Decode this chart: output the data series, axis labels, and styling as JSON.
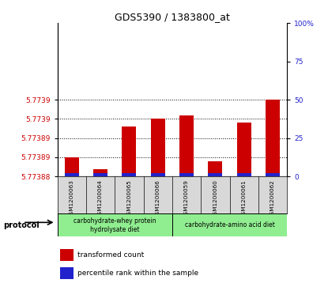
{
  "title": "GDS5390 / 1383800_at",
  "samples": [
    "GSM1200063",
    "GSM1200064",
    "GSM1200065",
    "GSM1200066",
    "GSM1200059",
    "GSM1200060",
    "GSM1200061",
    "GSM1200062"
  ],
  "red_values": [
    5.773885,
    5.773882,
    5.773893,
    5.773895,
    5.773896,
    5.773884,
    5.773894,
    5.7739
  ],
  "blue_percentiles": [
    2,
    2,
    2,
    2,
    2,
    2,
    2,
    2
  ],
  "ylim_left": [
    5.77388,
    5.77392
  ],
  "ylim_right": [
    0,
    100
  ],
  "left_yticks": [
    5.77388,
    5.773885,
    5.77389,
    5.773895,
    5.7739
  ],
  "left_yticklabels": [
    "5.77388",
    "5.77389",
    "5.77389",
    "5.7739",
    "5.7739"
  ],
  "right_yticks": [
    0,
    25,
    50,
    75,
    100
  ],
  "right_yticklabels": [
    "0",
    "25",
    "50",
    "75",
    "100%"
  ],
  "protocol_groups": [
    {
      "label": "carbohydrate-whey protein\nhydrolysate diet",
      "start": 0,
      "end": 4,
      "color": "#90ee90"
    },
    {
      "label": "carbohydrate-amino acid diet",
      "start": 4,
      "end": 8,
      "color": "#90ee90"
    }
  ],
  "protocol_label": "protocol",
  "legend_items": [
    {
      "color": "#cc0000",
      "label": "transformed count"
    },
    {
      "color": "#2222cc",
      "label": "percentile rank within the sample"
    }
  ],
  "bar_width": 0.5,
  "red_color": "#cc0000",
  "blue_color": "#2222cc",
  "tick_label_color_left": "#cc0000",
  "tick_label_color_right": "#2222cc",
  "bg_gray": "#d8d8d8"
}
